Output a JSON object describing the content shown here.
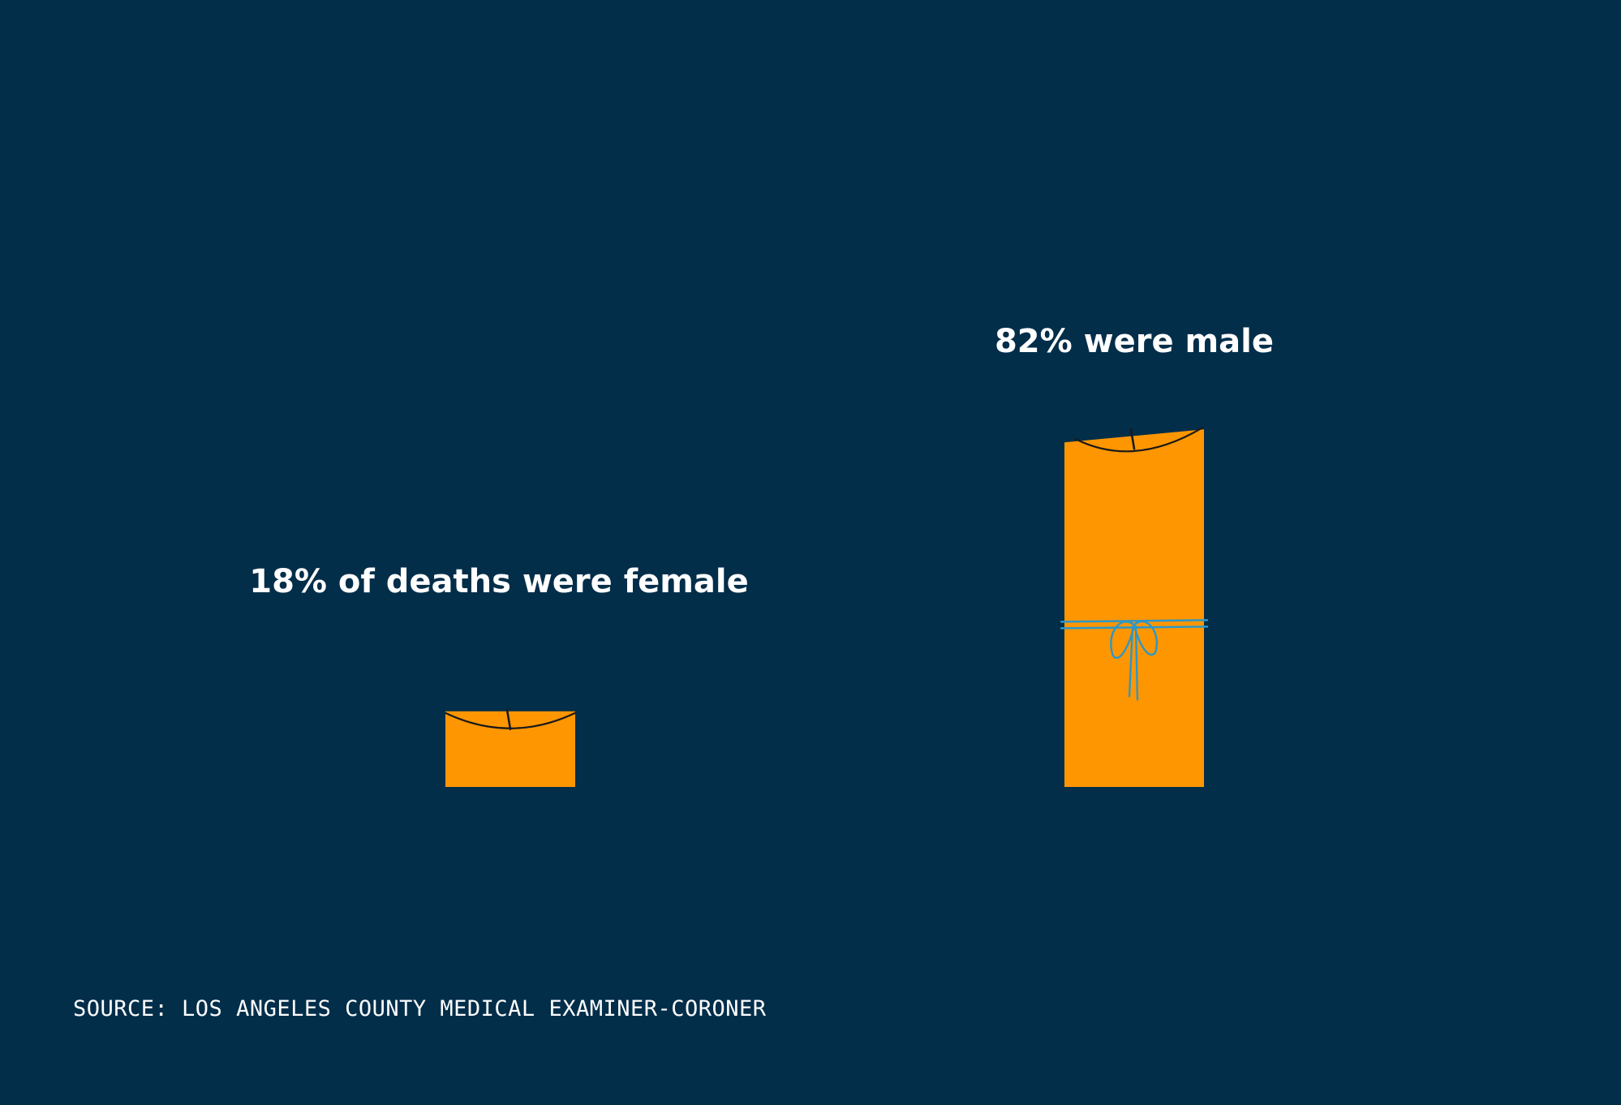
{
  "chart_data": {
    "type": "bar",
    "categories": [
      "female",
      "male"
    ],
    "values": [
      18,
      82
    ],
    "unit": "%",
    "data_labels": [
      "18% of deaths were female",
      "82% were male"
    ],
    "title": "",
    "xlabel": "",
    "ylabel": "",
    "ylim": [
      0,
      100
    ],
    "grid": false,
    "legend": "none"
  },
  "source": "SOURCE: LOS ANGELES COUNTY MEDICAL EXAMINER-CORONER",
  "colors": {
    "background": "#032e4a",
    "bar": "#fe9601",
    "wick": "#1a1a1a",
    "ribbon": "#2e97c6",
    "text": "#ffffff"
  },
  "icons": [
    "candle-icon",
    "ribbon-bow-icon"
  ]
}
